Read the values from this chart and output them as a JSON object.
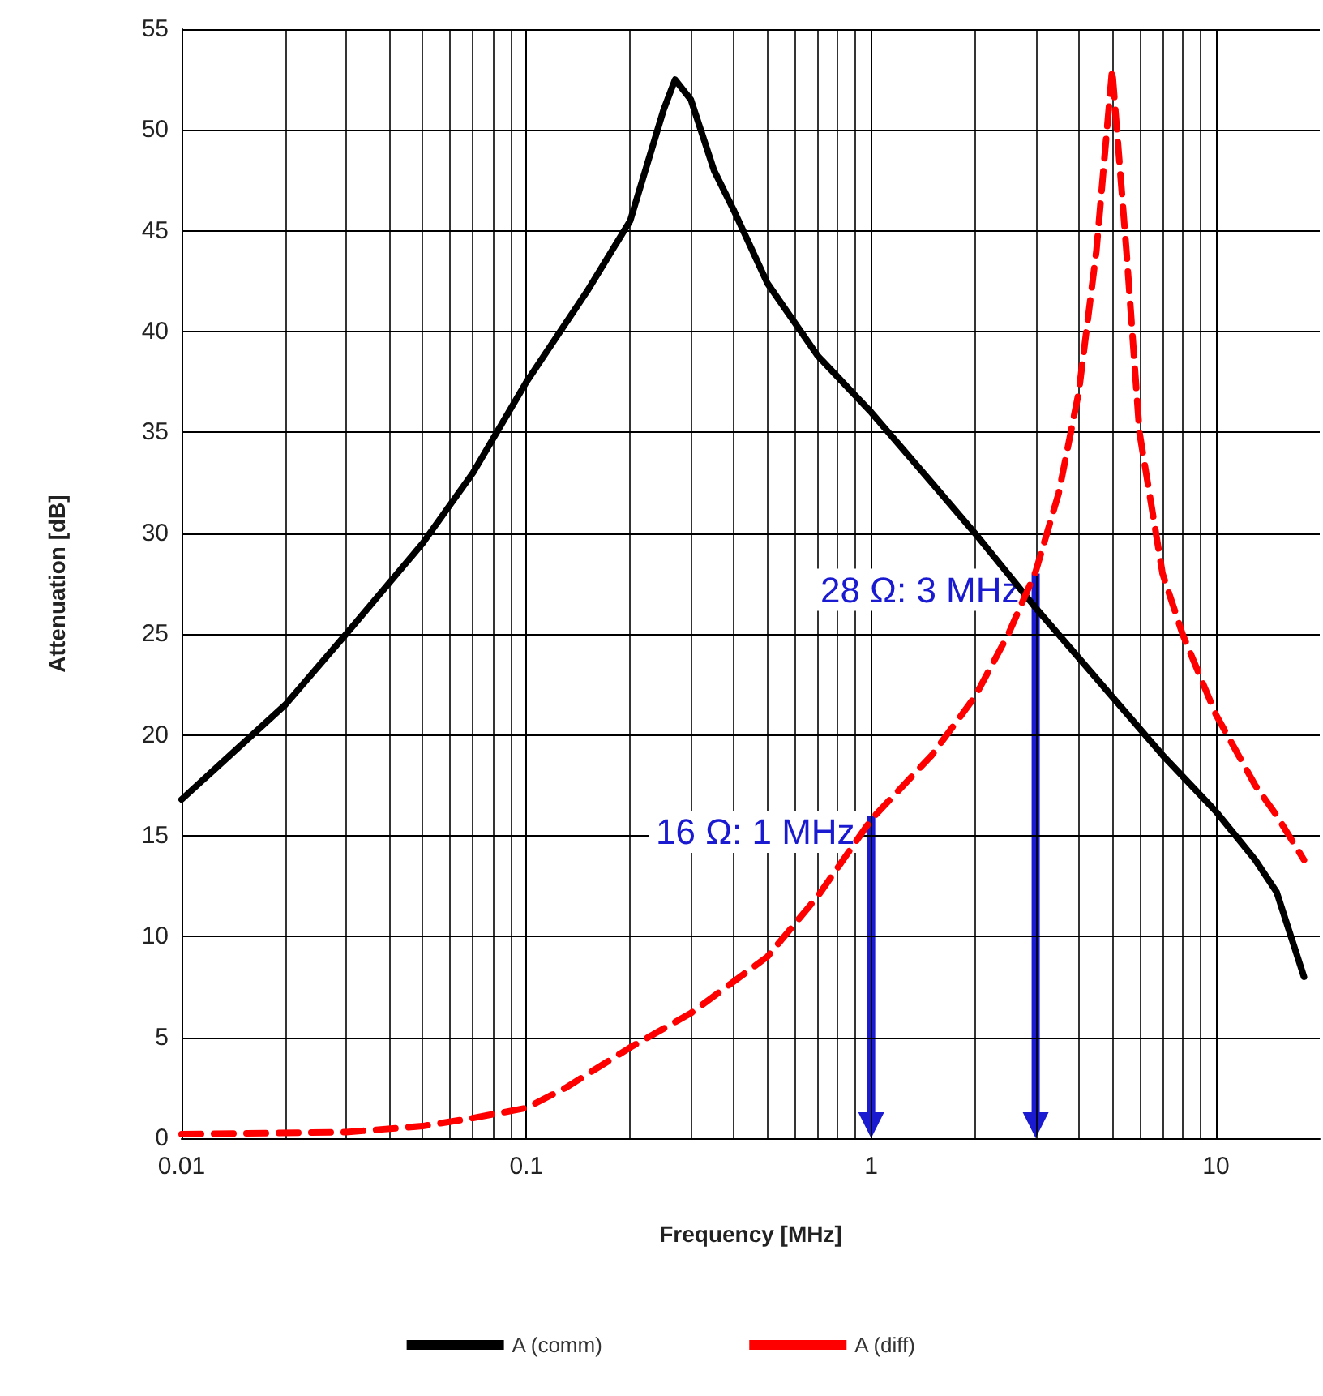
{
  "chart_data": {
    "type": "line",
    "xlabel": "Frequency [MHz]",
    "ylabel": "Attenuation [dB]",
    "xlim": [
      0.01,
      20
    ],
    "xticks": [
      0.01,
      0.1,
      1,
      10
    ],
    "ylim": [
      0,
      55
    ],
    "yticks": [
      0,
      5,
      10,
      15,
      20,
      25,
      30,
      35,
      40,
      45,
      50,
      55
    ],
    "log": "x",
    "grid": true,
    "legend": "bottom",
    "marker": "none",
    "series": [
      {
        "name": "A (comm)",
        "color": "#000000",
        "line_style": "solid",
        "x": [
          0.01,
          0.02,
          0.03,
          0.05,
          0.07,
          0.1,
          0.15,
          0.2,
          0.25,
          0.27,
          0.3,
          0.35,
          0.4,
          0.5,
          0.7,
          1,
          1.5,
          2,
          3,
          5,
          7,
          10,
          13,
          15,
          18
        ],
        "values": [
          16.8,
          21.5,
          25,
          29.5,
          33,
          37.5,
          42,
          45.5,
          51,
          52.5,
          51.5,
          48,
          46,
          42.4,
          38.8,
          36,
          32.5,
          30,
          26.3,
          21.9,
          19,
          16.2,
          13.8,
          12.2,
          8
        ]
      },
      {
        "name": "A (diff)",
        "color": "#ff0000",
        "line_style": "dashed",
        "x": [
          0.01,
          0.03,
          0.05,
          0.07,
          0.1,
          0.13,
          0.2,
          0.3,
          0.5,
          0.7,
          1,
          1.5,
          2,
          2.5,
          3,
          3.5,
          4,
          4.5,
          5,
          5.5,
          6,
          7,
          8,
          10,
          13,
          15,
          18
        ],
        "values": [
          0.2,
          0.3,
          0.6,
          1,
          1.5,
          2.5,
          4.5,
          6.2,
          9,
          12,
          15.8,
          19,
          21.9,
          25,
          28.1,
          32,
          37,
          44,
          53,
          44,
          35,
          28,
          25,
          21,
          17.5,
          16,
          13.8
        ]
      }
    ],
    "annotations": [
      {
        "text": "28 Ω: 3 MHz",
        "x": 3,
        "y": 28
      },
      {
        "text": "16 Ω: 1 MHz",
        "x": 1,
        "y": 16
      }
    ]
  }
}
